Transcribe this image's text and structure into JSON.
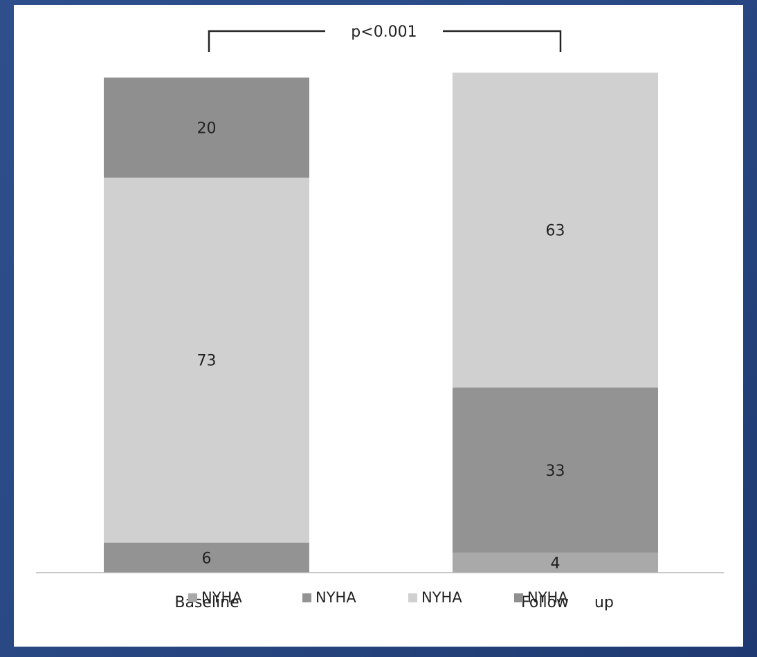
{
  "chart_data": {
    "type": "bar",
    "stacked": true,
    "categories": [
      "Baseline",
      "Follow up"
    ],
    "series": [
      {
        "name": "NYHA",
        "values": [
          0,
          4
        ],
        "color": "#a9a9a9"
      },
      {
        "name": "NYHA",
        "values": [
          6,
          33
        ],
        "color": "#939393"
      },
      {
        "name": "NYHA",
        "values": [
          73,
          63
        ],
        "color": "#d0d0d0"
      },
      {
        "name": "NYHA",
        "values": [
          20,
          0
        ],
        "color": "#8f8f8f"
      }
    ],
    "annotation": "p<0.001",
    "ylim": [
      0,
      100
    ],
    "grid": false,
    "legend": "bottom"
  }
}
